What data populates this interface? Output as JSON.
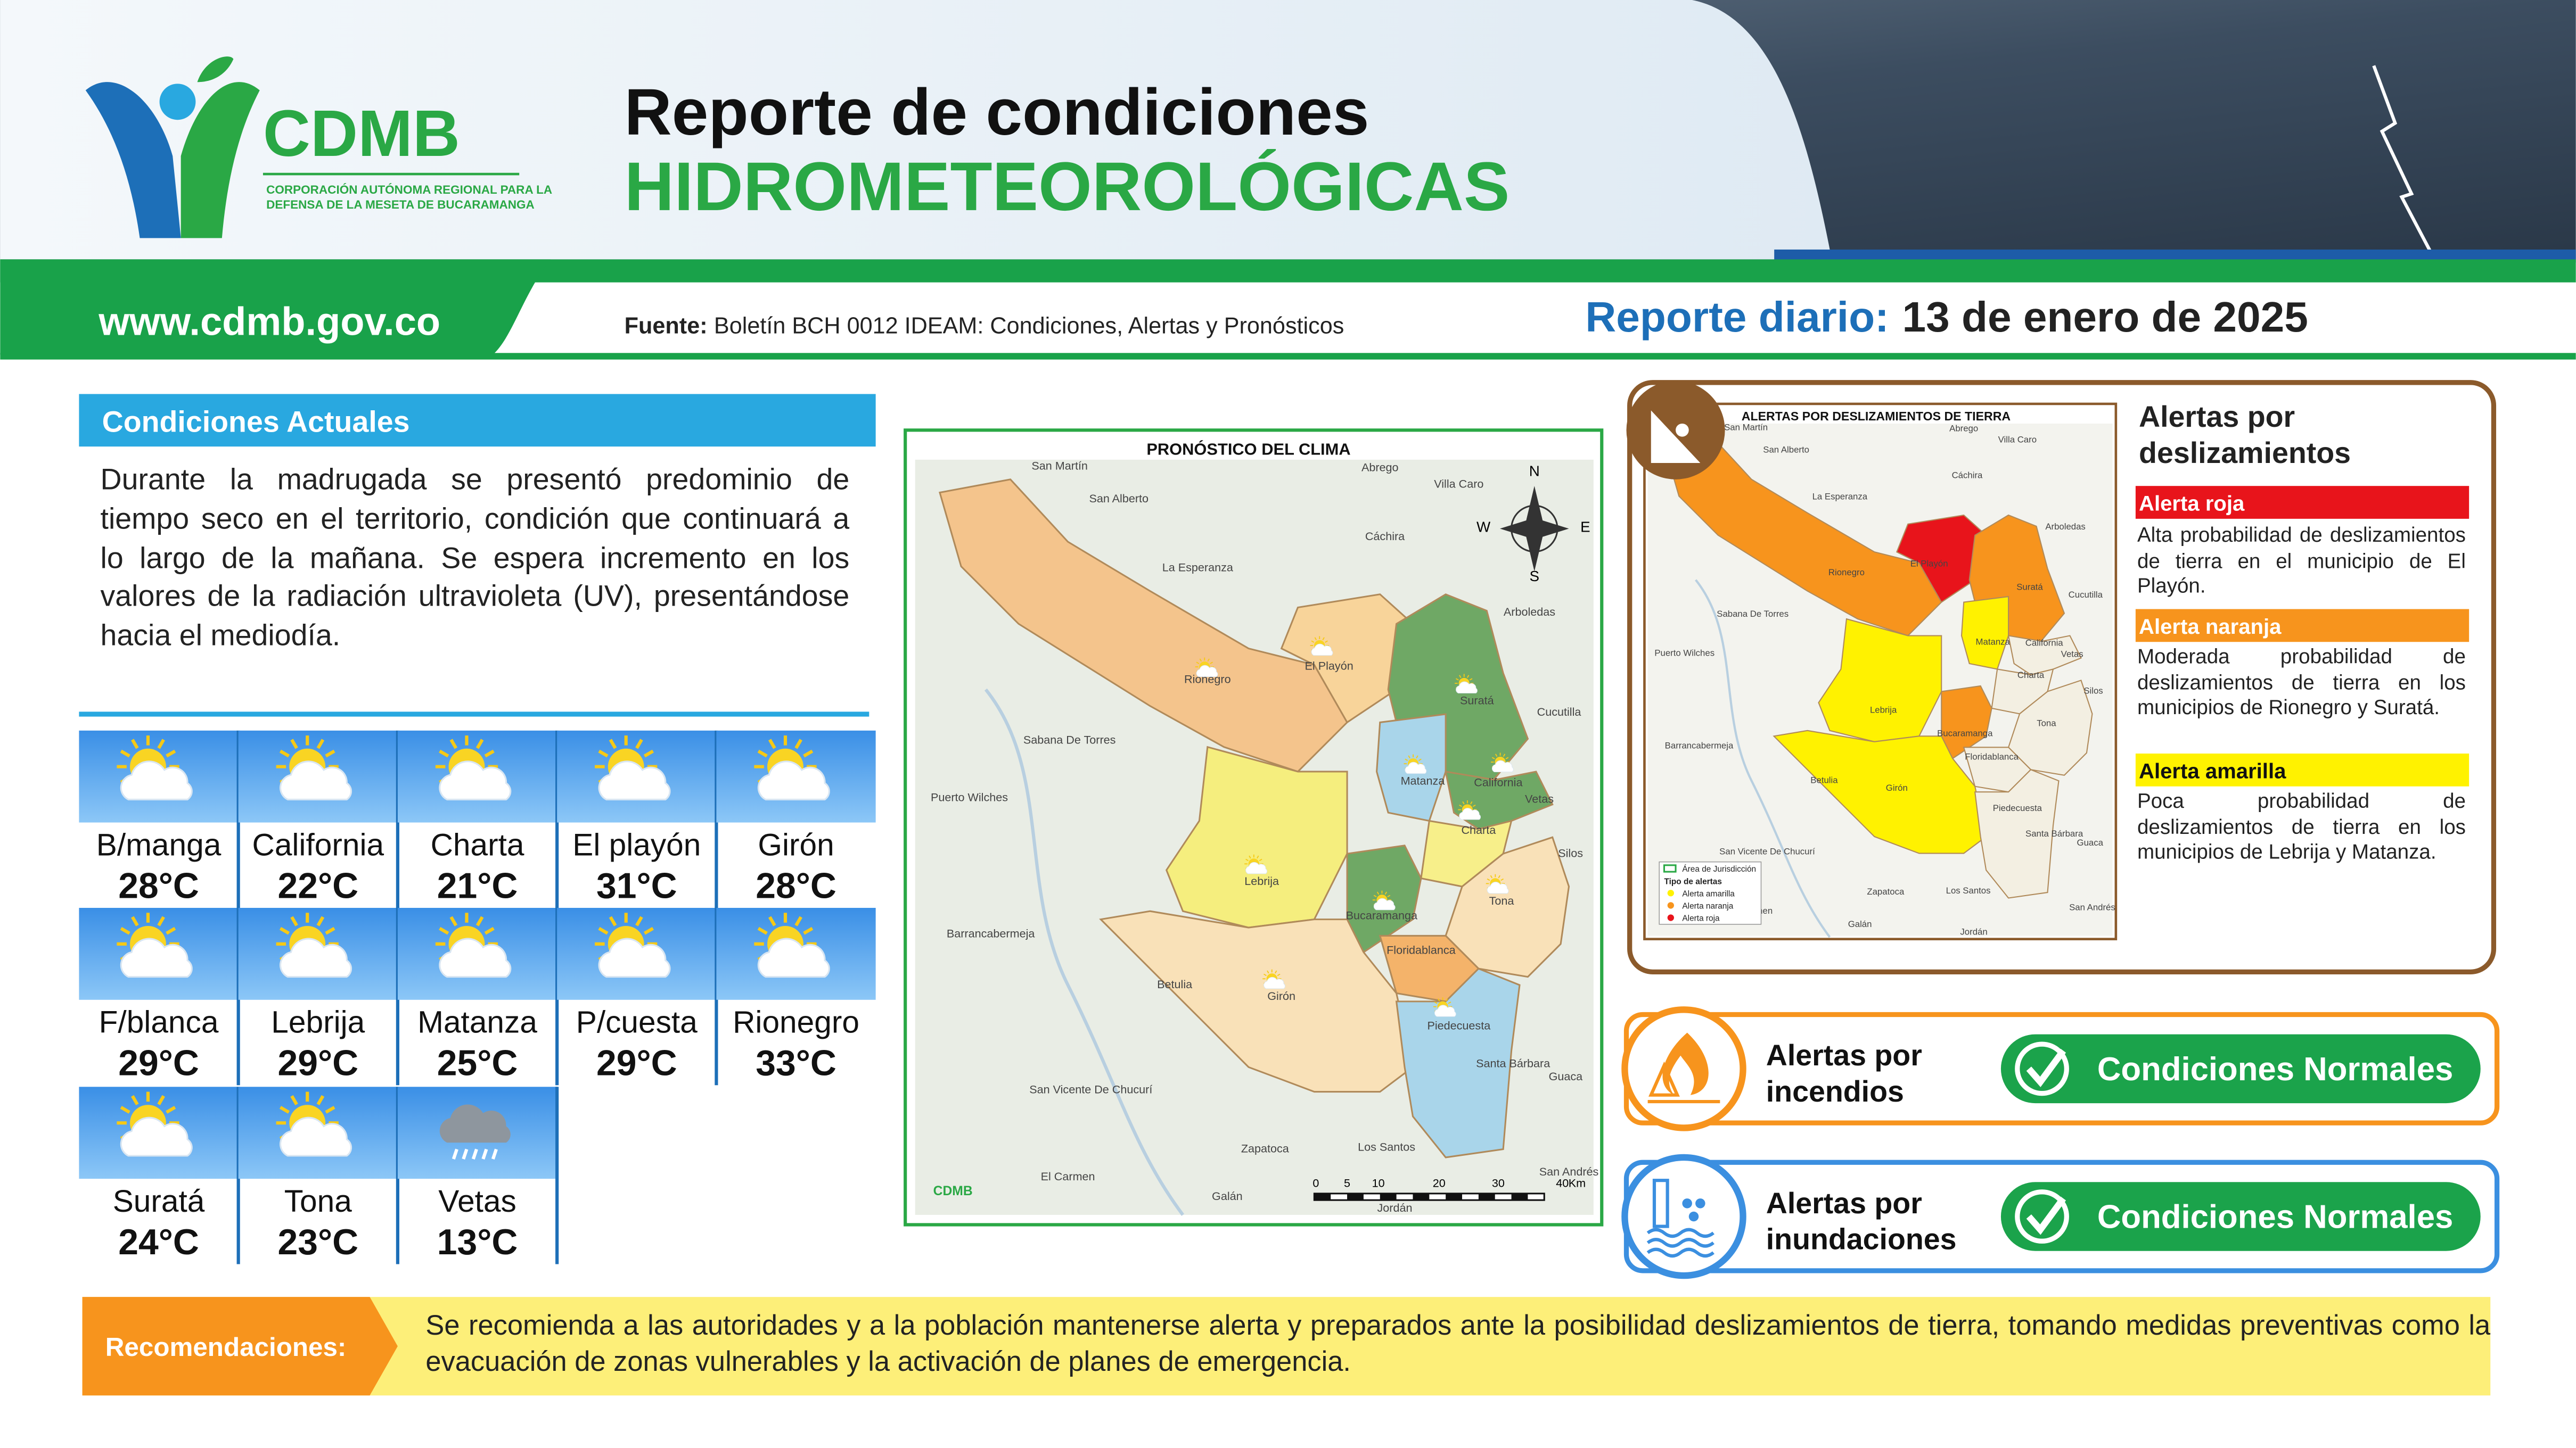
{
  "logo": {
    "name": "CDMB",
    "subtitle": [
      "CORPORACIÓN AUTÓNOMA REGIONAL PARA LA",
      "DEFENSA DE LA MESETA DE BUCARAMANGA"
    ]
  },
  "header": {
    "title_line1": "Reporte de condiciones",
    "title_line2": "HIDROMETEOROLÓGICAS",
    "url": "www.cdmb.gov.co",
    "source_label": "Fuente:",
    "source_text": "Boletín BCH 0012 IDEAM: Condiciones, Alertas y Pronósticos",
    "report_label": "Reporte diario:",
    "report_date": "13 de enero de 2025"
  },
  "current_conditions": {
    "title": "Condiciones Actuales",
    "text": "Durante la madrugada se presentó predominio de tiempo seco en el territorio, condición que continuará a lo largo de la mañana. Se espera incremento en los valores de la radiación ultravioleta (UV), presentándose hacia el mediodía."
  },
  "weather": [
    {
      "city": "B/manga",
      "temp": "28°C",
      "icon": "sun-cloud"
    },
    {
      "city": "California",
      "temp": "22°C",
      "icon": "sun-cloud"
    },
    {
      "city": "Charta",
      "temp": "21°C",
      "icon": "sun-cloud"
    },
    {
      "city": "El playón",
      "temp": "31°C",
      "icon": "sun-cloud"
    },
    {
      "city": "Girón",
      "temp": "28°C",
      "icon": "sun-cloud"
    },
    {
      "city": "F/blanca",
      "temp": "29°C",
      "icon": "sun-cloud"
    },
    {
      "city": "Lebrija",
      "temp": "29°C",
      "icon": "sun-cloud"
    },
    {
      "city": "Matanza",
      "temp": "25°C",
      "icon": "sun-cloud"
    },
    {
      "city": "P/cuesta",
      "temp": "29°C",
      "icon": "sun-cloud"
    },
    {
      "city": "Rionegro",
      "temp": "33°C",
      "icon": "sun-cloud"
    },
    {
      "city": "Suratá",
      "temp": "24°C",
      "icon": "sun-cloud"
    },
    {
      "city": "Tona",
      "temp": "23°C",
      "icon": "sun-cloud"
    },
    {
      "city": "Vetas",
      "temp": "13°C",
      "icon": "rain"
    }
  ],
  "maps": {
    "forecast": {
      "title": "PRONÓSTICO DEL CLIMA",
      "compass": [
        "N",
        "S",
        "E",
        "W"
      ],
      "scale": [
        "0",
        "5",
        "10",
        "20",
        "30",
        "40",
        "Km"
      ],
      "places": [
        "San Martín",
        "San Alberto",
        "Abrego",
        "Villa Caro",
        "Cáchira",
        "La Esperanza",
        "Arboledas",
        "El Playón",
        "Rionegro",
        "Suratá",
        "Cucutilla",
        "Sabana De Torres",
        "Matanza",
        "California",
        "Vetas",
        "Charta",
        "Puerto Wilches",
        "Silos",
        "Lebrija",
        "Tona",
        "Bucaramanga",
        "Floridablanca",
        "Barrancabermeja",
        "Girón",
        "Betulia",
        "Piedecuesta",
        "Santa Bárbara",
        "Guaca",
        "San Vicente De Chucurí",
        "Zapatoca",
        "Los Santos",
        "El Carmen",
        "San Andrés",
        "Galán",
        "Jordán"
      ]
    },
    "landslide": {
      "title": "ALERTAS POR DESLIZAMIENTOS DE TIERRA",
      "legend": [
        "Área de Jurisdicción",
        "Tipo de alertas",
        "Alerta amarilla",
        "Alerta naranja",
        "Alerta roja"
      ],
      "places": [
        "San Martín",
        "San Alberto",
        "Abrego",
        "Villa Caro",
        "Cáchira",
        "La Esperanza",
        "Arboledas",
        "El Playón",
        "Rionegro",
        "Suratá",
        "Cucutilla",
        "Sabana De Torres",
        "Matanza",
        "California",
        "Vetas",
        "Charta",
        "Puerto Wilches",
        "Silos",
        "Lebrija",
        "Tona",
        "Bucaramanga",
        "Floridablanca",
        "Barrancabermeja",
        "Girón",
        "Betulia",
        "Piedecuesta",
        "Santa Bárbara",
        "Guaca",
        "San Vicente De Chucurí",
        "Zapatoca",
        "Los Santos",
        "El Carmen",
        "San Andrés",
        "Galán",
        "Jordán"
      ]
    }
  },
  "landslide_alerts": {
    "title": [
      "Alertas por",
      "deslizamientos"
    ],
    "alerts": [
      {
        "level": "Alerta roja",
        "color": "#e8141b",
        "text": "Alta probabilidad de deslizamientos de tierra en el municipio de El Playón."
      },
      {
        "level": "Alerta naranja",
        "color": "#f7941d",
        "text": "Moderada probabilidad de deslizamientos de tierra en los municipios de Rionegro y Suratá."
      },
      {
        "level": "Alerta amarilla",
        "color": "#fff200",
        "text": "Poca probabilidad de deslizamientos de tierra en los municipios de Lebrija y Matanza."
      }
    ]
  },
  "fire_alert": {
    "title": [
      "Alertas por",
      "incendios"
    ],
    "status": "Condiciones Normales"
  },
  "flood_alert": {
    "title": [
      "Alertas por",
      "inundaciones"
    ],
    "status": "Condiciones Normales"
  },
  "recommendations": {
    "label": "Recomendaciones:",
    "text": "Se recomienda a las autoridades y a la población mantenerse alerta y preparados ante la posibilidad deslizamientos de tierra, tomando medidas preventivas como la evacuación de zonas vulnerables y la activación de planes de emergencia."
  }
}
